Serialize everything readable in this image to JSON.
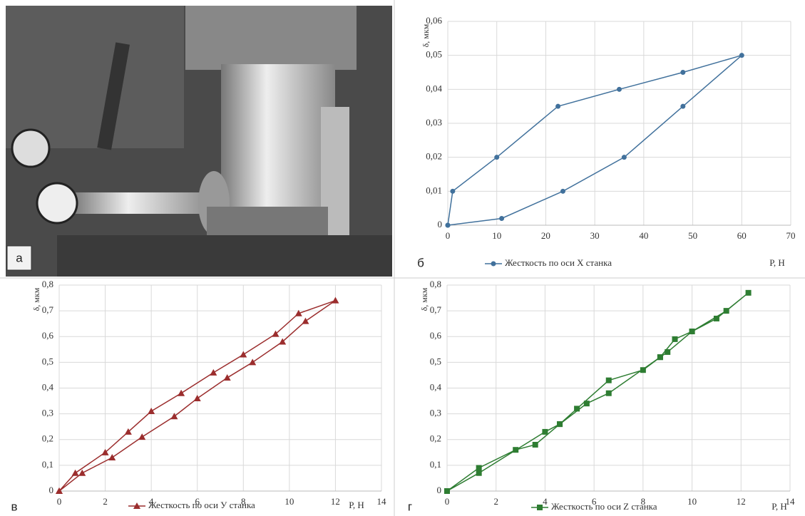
{
  "photo": {
    "label": "а"
  },
  "chart_data": [
    {
      "type": "line",
      "label": "б",
      "ylabel": "δ, мкм",
      "xlabel": "Р, Н",
      "marker": "circle",
      "x": [
        0,
        1,
        10,
        22.5,
        35,
        48,
        60,
        48,
        36,
        23.5,
        11,
        0
      ],
      "series": [
        {
          "name": "Жесткость по оси X станка",
          "color": "#41719c",
          "values": [
            0,
            0.01,
            0.02,
            0.035,
            0.04,
            0.045,
            0.05,
            0.035,
            0.02,
            0.01,
            0.002,
            0
          ]
        }
      ],
      "xlim": [
        0,
        70
      ],
      "xticks": [
        0,
        10,
        20,
        30,
        40,
        50,
        60,
        70
      ],
      "ylim": [
        0,
        0.06
      ],
      "yticks": [
        0,
        {
          "value": 0.01,
          "label": "0,01"
        },
        {
          "value": 0.02,
          "label": "0,02"
        },
        {
          "value": 0.03,
          "label": "0,03"
        },
        {
          "value": 0.04,
          "label": "0,04"
        },
        {
          "value": 0.05,
          "label": "0,05"
        },
        {
          "value": 0.06,
          "label": "0,06"
        }
      ],
      "grid": true
    },
    {
      "type": "line",
      "label": "в",
      "ylabel": "δ, мкм",
      "xlabel": "Р, Н",
      "marker": "triangle",
      "x": [
        0,
        0.7,
        2,
        3,
        4,
        5.3,
        6.7,
        8,
        9.4,
        10.4,
        12,
        10.7,
        9.7,
        8.4,
        7.3,
        6,
        5,
        3.6,
        2.3,
        1,
        0
      ],
      "series": [
        {
          "name": "Жесткость по оси У станка",
          "color": "#9b2d2d",
          "values": [
            0,
            0.07,
            0.15,
            0.23,
            0.31,
            0.38,
            0.46,
            0.53,
            0.61,
            0.69,
            0.74,
            0.66,
            0.58,
            0.5,
            0.44,
            0.36,
            0.29,
            0.21,
            0.13,
            0.07,
            0
          ]
        }
      ],
      "xlim": [
        0,
        14
      ],
      "xticks": [
        0,
        2,
        4,
        6,
        8,
        10,
        12,
        14
      ],
      "ylim": [
        0,
        0.8
      ],
      "yticks": [
        0,
        {
          "value": 0.1,
          "label": "0,1"
        },
        {
          "value": 0.2,
          "label": "0,2"
        },
        {
          "value": 0.3,
          "label": "0,3"
        },
        {
          "value": 0.4,
          "label": "0,4"
        },
        {
          "value": 0.5,
          "label": "0,5"
        },
        {
          "value": 0.6,
          "label": "0,6"
        },
        {
          "value": 0.7,
          "label": "0,7"
        },
        {
          "value": 0.8,
          "label": "0,8"
        }
      ],
      "grid": true
    },
    {
      "type": "line",
      "label": "г",
      "ylabel": "δ, мкм",
      "xlabel": "Р, Н",
      "marker": "square",
      "x": [
        0,
        1.3,
        2.8,
        3.6,
        4.6,
        5.3,
        6.6,
        8,
        8.7,
        9,
        10,
        11,
        12.3,
        11.4,
        10,
        9.3,
        8.7,
        6.6,
        5.7,
        4.6,
        4,
        1.3,
        0
      ],
      "series": [
        {
          "name": "Жесткость по оси Z станка",
          "color": "#2e7d32",
          "values": [
            0,
            0.09,
            0.16,
            0.18,
            0.26,
            0.32,
            0.43,
            0.47,
            0.52,
            0.54,
            0.62,
            0.67,
            0.77,
            0.7,
            0.62,
            0.59,
            0.52,
            0.38,
            0.34,
            0.26,
            0.23,
            0.07,
            0
          ]
        }
      ],
      "xlim": [
        0,
        14
      ],
      "xticks": [
        0,
        2,
        4,
        6,
        8,
        10,
        12,
        14
      ],
      "ylim": [
        0,
        0.8
      ],
      "yticks": [
        0,
        {
          "value": 0.1,
          "label": "0,1"
        },
        {
          "value": 0.2,
          "label": "0,2"
        },
        {
          "value": 0.3,
          "label": "0,3"
        },
        {
          "value": 0.4,
          "label": "0,4"
        },
        {
          "value": 0.5,
          "label": "0,5"
        },
        {
          "value": 0.6,
          "label": "0,6"
        },
        {
          "value": 0.7,
          "label": "0,7"
        },
        {
          "value": 0.8,
          "label": "0,8"
        }
      ],
      "grid": true
    }
  ]
}
